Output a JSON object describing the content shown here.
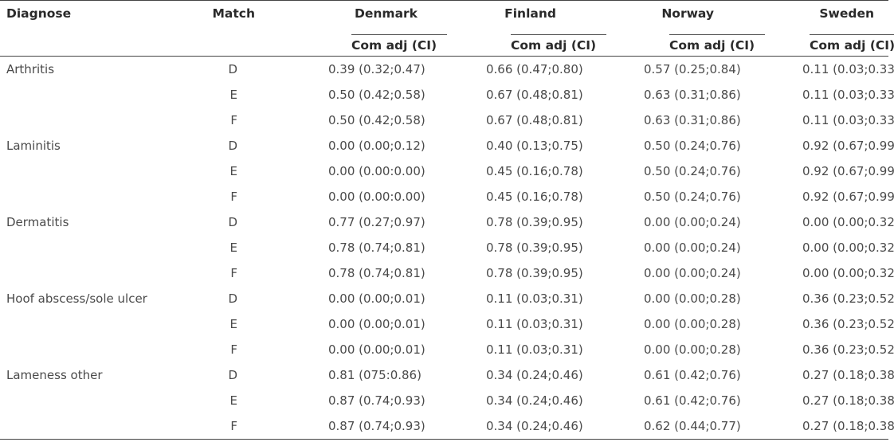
{
  "table": {
    "headers": {
      "diagnose": "Diagnose",
      "match": "Match",
      "countries": [
        "Denmark",
        "Finland",
        "Norway",
        "Sweden"
      ],
      "sub": [
        "Com adj (CI)",
        "Com adj (CI)",
        "Com adj (CI)",
        "Com adj (CI)"
      ]
    },
    "rows": [
      {
        "diagnose": "Arthritis",
        "match": "D",
        "values": [
          "0.39 (0.32;0.47)",
          "0.66 (0.47;0.80)",
          "0.57 (0.25;0.84)",
          "0.11 (0.03;0.33)"
        ]
      },
      {
        "diagnose": "",
        "match": "E",
        "values": [
          "0.50 (0.42;0.58)",
          "0.67 (0.48;0.81)",
          "0.63 (0.31;0.86)",
          "0.11 (0.03;0.33)"
        ]
      },
      {
        "diagnose": "",
        "match": "F",
        "values": [
          "0.50 (0.42;0.58)",
          "0.67 (0.48;0.81)",
          "0.63 (0.31;0.86)",
          "0.11 (0.03;0.33)"
        ]
      },
      {
        "diagnose": "Laminitis",
        "match": "D",
        "values": [
          "0.00 (0.00;0.12)",
          "0.40 (0.13;0.75)",
          "0.50 (0.24;0.76)",
          "0.92 (0.67;0.99)"
        ]
      },
      {
        "diagnose": "",
        "match": "E",
        "values": [
          "0.00 (0.00:0.00)",
          "0.45 (0.16;0.78)",
          "0.50 (0.24;0.76)",
          "0.92 (0.67;0.99)"
        ]
      },
      {
        "diagnose": "",
        "match": "F",
        "values": [
          "0.00 (0.00:0.00)",
          "0.45 (0.16;0.78)",
          "0.50 (0.24;0.76)",
          "0.92 (0.67;0.99)"
        ]
      },
      {
        "diagnose": "Dermatitis",
        "match": "D",
        "values": [
          "0.77 (0.27;0.97)",
          "0.78 (0.39;0.95)",
          "0.00 (0.00;0.24)",
          "0.00 (0.00;0.32)"
        ]
      },
      {
        "diagnose": "",
        "match": "E",
        "values": [
          "0.78 (0.74;0.81)",
          "0.78 (0.39;0.95)",
          "0.00 (0.00;0.24)",
          "0.00 (0.00;0.32)"
        ]
      },
      {
        "diagnose": "",
        "match": "F",
        "values": [
          "0.78 (0.74;0.81)",
          "0.78 (0.39;0.95)",
          "0.00 (0.00;0.24)",
          "0.00 (0.00;0.32)"
        ]
      },
      {
        "diagnose": "Hoof abscess/sole ulcer",
        "match": "D",
        "values": [
          "0.00 (0.00;0.01)",
          "0.11 (0.03;0.31)",
          "0.00 (0.00;0.28)",
          "0.36 (0.23;0.52)"
        ]
      },
      {
        "diagnose": "",
        "match": "E",
        "values": [
          "0.00 (0.00;0.01)",
          "0.11 (0.03;0.31)",
          "0.00 (0.00;0.28)",
          "0.36 (0.23;0.52)"
        ]
      },
      {
        "diagnose": "",
        "match": "F",
        "values": [
          "0.00 (0.00;0.01)",
          "0.11 (0.03;0.31)",
          "0.00 (0.00;0.28)",
          "0.36 (0.23;0.52)"
        ]
      },
      {
        "diagnose": "Lameness other",
        "match": "D",
        "values": [
          "0.81 (075:0.86)",
          "0.34 (0.24;0.46)",
          "0.61 (0.42;0.76)",
          "0.27 (0.18;0.38)"
        ]
      },
      {
        "diagnose": "",
        "match": "E",
        "values": [
          "0.87 (0.74;0.93)",
          "0.34 (0.24;0.46)",
          "0.61 (0.42;0.76)",
          "0.27 (0.18;0.38)"
        ]
      },
      {
        "diagnose": "",
        "match": "F",
        "values": [
          "0.87 (0.74;0.93)",
          "0.34 (0.24;0.46)",
          "0.62 (0.44;0.77)",
          "0.27 (0.18;0.38)"
        ]
      }
    ]
  }
}
